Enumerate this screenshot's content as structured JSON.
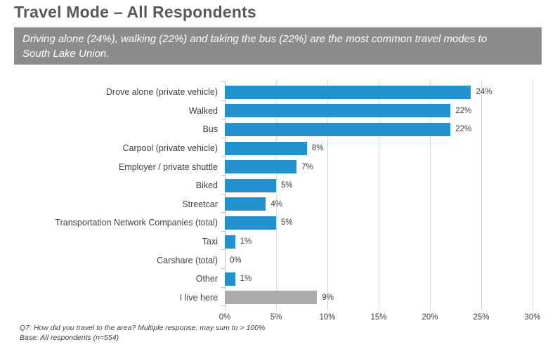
{
  "title": "Travel Mode – All Respondents",
  "subtitle": "Driving alone (24%), walking (22%) and taking the bus (22%) are the most common travel modes to South Lake Union.",
  "footnote": {
    "line1": "Q7: How did you travel to the area?  Multiple response: may sum to > 100%",
    "line2": "Base: All respondents (n=554)"
  },
  "colors": {
    "bar_blue": "#2391CD",
    "bar_gray": "#ABABAB",
    "banner_bg": "#8C8C8C",
    "banner_text": "#FFFFFF",
    "title_text": "#595959",
    "axis_line": "#BFBFBF",
    "gridline": "#D9D9D9",
    "label_text": "#404040"
  },
  "chart_data": {
    "type": "bar",
    "orientation": "horizontal",
    "title": "Travel Mode – All Respondents",
    "xlim": [
      0,
      30
    ],
    "x_tick_labels": [
      "0%",
      "5%",
      "10%",
      "15%",
      "20%",
      "25%",
      "30%"
    ],
    "grid": true,
    "legend": "none",
    "items": [
      {
        "category": "Drove alone (private vehicle)",
        "value": 24,
        "label": "24%",
        "color": "#2391CD"
      },
      {
        "category": "Walked",
        "value": 22,
        "label": "22%",
        "color": "#2391CD"
      },
      {
        "category": "Bus",
        "value": 22,
        "label": "22%",
        "color": "#2391CD"
      },
      {
        "category": "Carpool (private vehicle)",
        "value": 8,
        "label": "8%",
        "color": "#2391CD"
      },
      {
        "category": "Employer / private shuttle",
        "value": 7,
        "label": "7%",
        "color": "#2391CD"
      },
      {
        "category": "Biked",
        "value": 5,
        "label": "5%",
        "color": "#2391CD"
      },
      {
        "category": "Streetcar",
        "value": 4,
        "label": "4%",
        "color": "#2391CD"
      },
      {
        "category": "Transportation Network Companies (total)",
        "value": 5,
        "label": "5%",
        "color": "#2391CD"
      },
      {
        "category": "Taxi",
        "value": 1,
        "label": "1%",
        "color": "#2391CD"
      },
      {
        "category": "Carshare (total)",
        "value": 0,
        "label": "0%",
        "color": "#2391CD"
      },
      {
        "category": "Other",
        "value": 1,
        "label": "1%",
        "color": "#2391CD"
      },
      {
        "category": "I live here",
        "value": 9,
        "label": "9%",
        "color": "#ABABAB"
      }
    ]
  }
}
